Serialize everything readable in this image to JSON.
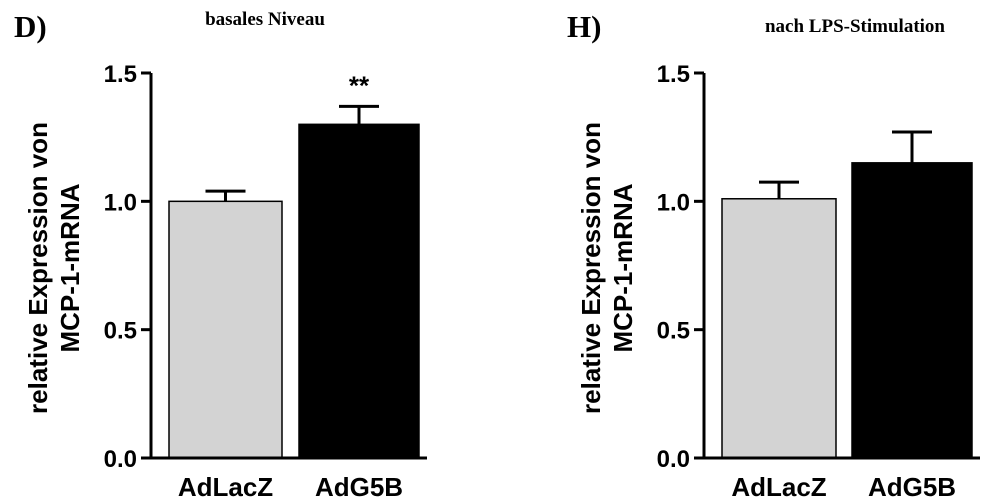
{
  "chart_data": [
    {
      "type": "bar",
      "panel_label": "D)",
      "title": "basales Niveau",
      "ylabel_lines": [
        "relative Expression von",
        "MCP-1-mRNA"
      ],
      "categories": [
        "AdLacZ",
        "AdG5B"
      ],
      "values": [
        1.0,
        1.3
      ],
      "errors": [
        0.04,
        0.07
      ],
      "bar_colors": [
        "#d3d3d3",
        "#000000"
      ],
      "annotations": [
        {
          "category": "AdG5B",
          "text": "**"
        }
      ],
      "yticks": [
        0.0,
        0.5,
        1.0,
        1.5
      ],
      "ytick_labels": [
        "0.0",
        "0.5",
        "1.0",
        "1.5"
      ],
      "ylim": [
        0,
        1.5
      ],
      "grid": false
    },
    {
      "type": "bar",
      "panel_label": "H)",
      "title": "nach LPS-Stimulation",
      "ylabel_lines": [
        "relative Expression von",
        "MCP-1-mRNA"
      ],
      "categories": [
        "AdLacZ",
        "AdG5B"
      ],
      "values": [
        1.01,
        1.15
      ],
      "errors": [
        0.065,
        0.12
      ],
      "bar_colors": [
        "#d3d3d3",
        "#000000"
      ],
      "annotations": [],
      "yticks": [
        0.0,
        0.5,
        1.0,
        1.5
      ],
      "ytick_labels": [
        "0.0",
        "0.5",
        "1.0",
        "1.5"
      ],
      "ylim": [
        0,
        1.5
      ],
      "grid": false
    }
  ]
}
